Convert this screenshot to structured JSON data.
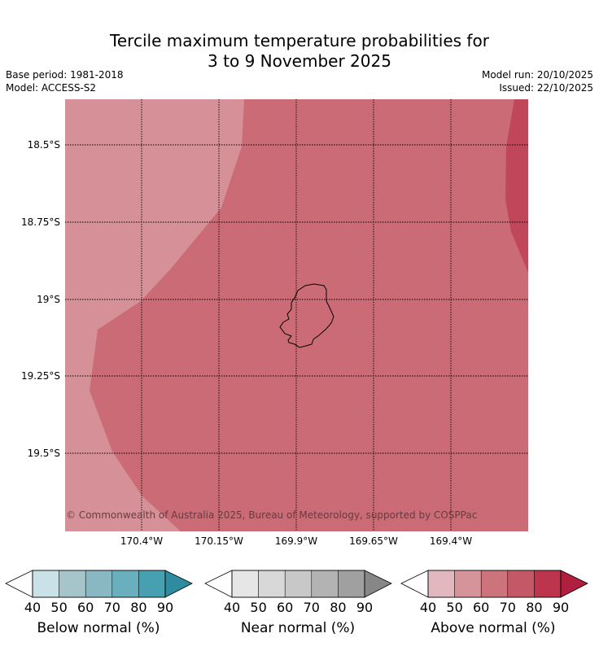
{
  "title_line1": "Tercile maximum temperature probabilities for",
  "title_line2": "3 to 9 November 2025",
  "base_period": "Base period: 1981-2018",
  "model": "Model: ACCESS-S2",
  "model_run": "Model run: 20/10/2025",
  "issued": "Issued: 22/10/2025",
  "latitude_labels": [
    "18.5°S",
    "18.75°S",
    "19°S",
    "19.25°S",
    "19.5°S"
  ],
  "longitude_labels": [
    "170.4°W",
    "170.15°W",
    "169.9°W",
    "169.65°W",
    "169.4°W"
  ],
  "copyright": "© Commonwealth of Australia 2025, Bureau of Meteorology, supported by COSPPac",
  "colorbars": [
    {
      "label": "Below normal (%)",
      "ticks": [
        "40",
        "50",
        "60",
        "70",
        "80",
        "90"
      ],
      "colors": [
        "#c9e1e7",
        "#a6c5cb",
        "#89b8c3",
        "#6aafbd",
        "#47a0b2",
        "#2f8ba0"
      ]
    },
    {
      "label": "Near normal (%)",
      "ticks": [
        "40",
        "50",
        "60",
        "70",
        "80",
        "90"
      ],
      "colors": [
        "#e6e6e6",
        "#d8d8d8",
        "#c8c8c8",
        "#b3b3b3",
        "#a0a0a0",
        "#878787"
      ]
    },
    {
      "label": "Above normal (%)",
      "ticks": [
        "40",
        "50",
        "60",
        "70",
        "80",
        "90"
      ],
      "colors": [
        "#e2b7bd",
        "#d5939a",
        "#cc737b",
        "#c45866",
        "#bd344d",
        "#b01f3e"
      ]
    }
  ],
  "map_colors": {
    "band_50_60": "#d69198",
    "band_60_70": "#cb6b75",
    "band_70_80": "#c04759"
  }
}
